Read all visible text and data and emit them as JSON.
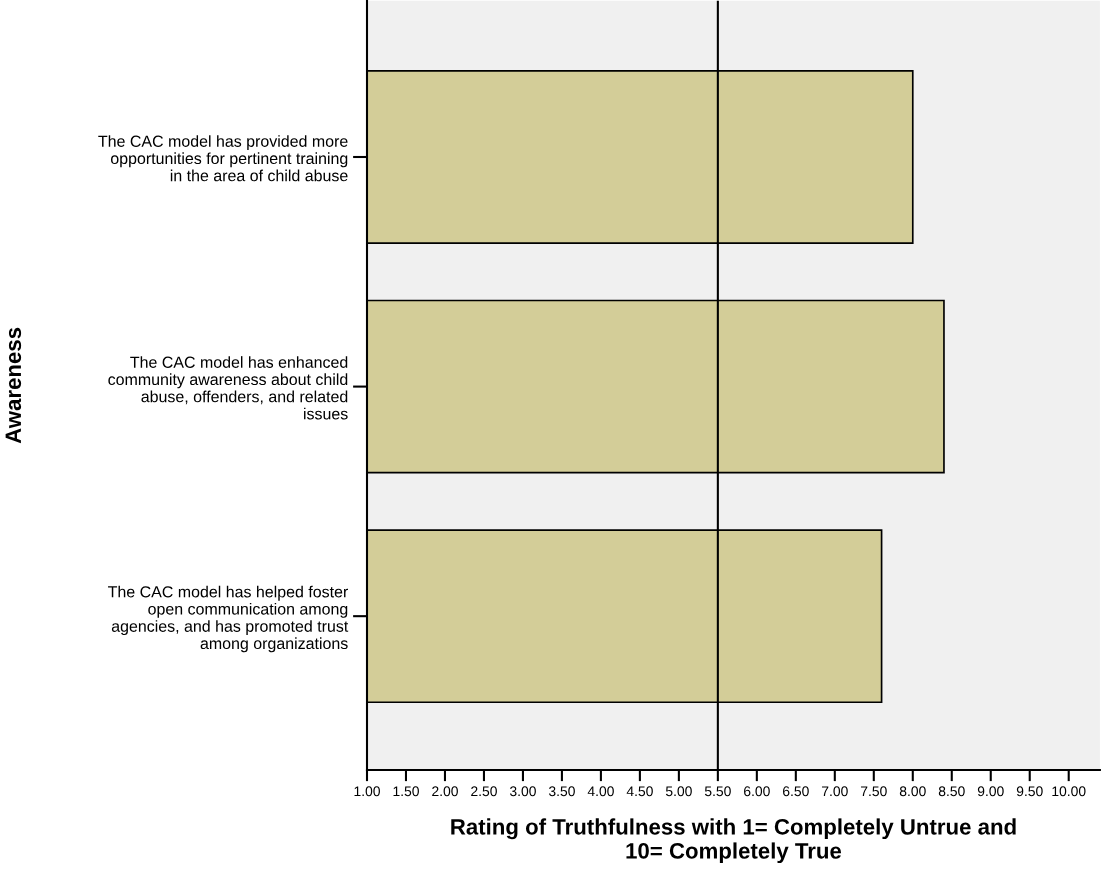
{
  "chart_data": {
    "type": "bar",
    "orientation": "horizontal",
    "xlabel": "Rating of Truthfulness with 1= Completely Untrue and\n10= Completely True",
    "ylabel": "Awareness",
    "categories": [
      "The CAC model has provided more\nopportunities for pertinent training\nin the area of child abuse",
      "The CAC model has enhanced\ncommunity awareness about child\nabuse, offenders, and related\nissues",
      "The CAC model has helped foster\nopen communication among\nagencies, and has promoted trust\namong organizations"
    ],
    "values": [
      8.0,
      8.4,
      7.6
    ],
    "color": "#d3cd98",
    "xlim": [
      1.0,
      10.4
    ],
    "xticks": [
      {
        "value": 1,
        "label": "1.00"
      },
      {
        "value": 1.5,
        "label": "1.50"
      },
      {
        "value": 2,
        "label": "2.00"
      },
      {
        "value": 2.5,
        "label": "2.50"
      },
      {
        "value": 3,
        "label": "3.00"
      },
      {
        "value": 3.5,
        "label": "3.50"
      },
      {
        "value": 4,
        "label": "4.00"
      },
      {
        "value": 4.5,
        "label": "4.50"
      },
      {
        "value": 5,
        "label": "5.00"
      },
      {
        "value": 5.5,
        "label": "5.50"
      },
      {
        "value": 6,
        "label": "6.00"
      },
      {
        "value": 6.5,
        "label": "6.50"
      },
      {
        "value": 7,
        "label": "7.00"
      },
      {
        "value": 7.5,
        "label": "7.50"
      },
      {
        "value": 8,
        "label": "8.00"
      },
      {
        "value": 8.5,
        "label": "8.50"
      },
      {
        "value": 9,
        "label": "9.00"
      },
      {
        "value": 9.5,
        "label": "9.50"
      },
      {
        "value": 10,
        "label": "10.00"
      }
    ],
    "ref_lines": [
      {
        "axis": "x",
        "value": 5.5,
        "color": "#000000"
      }
    ],
    "grid": false
  }
}
